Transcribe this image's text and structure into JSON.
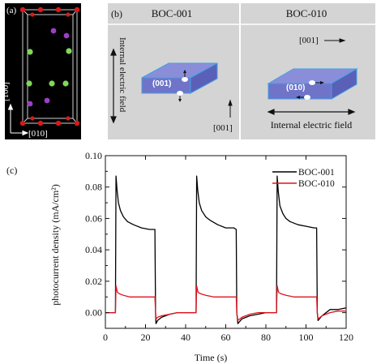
{
  "panel_a": {
    "label": "(a)",
    "axis_vertical": "[100]",
    "axis_horizontal": "[010]"
  },
  "panel_b": {
    "label": "(b)",
    "left_title": "BOC-001",
    "right_title": "BOC-010",
    "left_facet": "(001)",
    "right_facet": "(010)",
    "left_field_label": "Internal electric field",
    "right_field_label": "Internal electric field",
    "left_direction": "[001]",
    "right_direction": "[001]"
  },
  "colors": {
    "crystal_bg": "#000000",
    "panel_b_bg": "#d4d4d4",
    "slab_top": "#8a8ed9",
    "slab_side": "#5a60b8",
    "slab_edge": "#3fa0e6",
    "atom_red": "#d81a1a",
    "atom_green": "#7ed957",
    "atom_purple": "#9b3fc4",
    "series_boc001": "#000000",
    "series_boc010": "#e0141e"
  },
  "chart_data": {
    "label": "(c)",
    "type": "line",
    "xlabel": "Time (s)",
    "ylabel": "photocurrent density (mA/cm²)",
    "xlim": [
      0,
      120
    ],
    "ylim": [
      -0.01,
      0.1
    ],
    "xticks": [
      0,
      20,
      40,
      60,
      80,
      100,
      120
    ],
    "yticks": [
      0.0,
      0.02,
      0.04,
      0.06,
      0.08,
      0.1
    ],
    "ytick_labels": [
      "0.00",
      "0.02",
      "0.04",
      "0.06",
      "0.08",
      "0.10"
    ],
    "legend_position": "top-right",
    "series": [
      {
        "name": "BOC-001",
        "color": "#000000",
        "x": [
          0,
          5,
          5.3,
          5.8,
          6.5,
          7.5,
          9,
          11,
          14,
          18,
          22,
          24.7,
          25,
          25.2,
          26,
          28,
          32,
          36,
          40,
          44,
          45.2,
          45.5,
          46,
          46.8,
          48,
          50,
          52,
          56,
          60,
          64,
          65.2,
          65.5,
          66,
          68,
          72,
          76,
          80,
          84,
          85.3,
          85.6,
          86.2,
          87,
          88.5,
          90,
          92,
          96,
          100,
          104,
          105.3,
          105.6,
          106,
          108,
          112,
          116,
          120
        ],
        "y": [
          0.0,
          0.0,
          0.087,
          0.078,
          0.07,
          0.065,
          0.061,
          0.058,
          0.056,
          0.054,
          0.053,
          0.053,
          0.0,
          -0.007,
          -0.005,
          -0.003,
          -0.001,
          0.0,
          0.0,
          0.0,
          0.0,
          0.087,
          0.078,
          0.07,
          0.065,
          0.061,
          0.059,
          0.056,
          0.054,
          0.054,
          0.053,
          0.0,
          -0.007,
          -0.004,
          -0.002,
          -0.001,
          0.0,
          0.0,
          0.0,
          0.087,
          0.077,
          0.068,
          0.063,
          0.06,
          0.058,
          0.056,
          0.055,
          0.054,
          0.054,
          0.0,
          -0.005,
          -0.002,
          0.002,
          0.002,
          0.003
        ]
      },
      {
        "name": "BOC-010",
        "color": "#e0141e",
        "x": [
          0,
          5,
          5.3,
          6,
          7,
          9,
          12,
          16,
          20,
          24.7,
          25,
          25.3,
          26,
          28,
          32,
          36,
          40,
          44,
          45.2,
          45.5,
          46.2,
          47.5,
          50,
          54,
          58,
          62,
          65.2,
          65.5,
          66,
          68,
          72,
          76,
          80,
          84,
          85.3,
          85.6,
          86.3,
          87.5,
          90,
          94,
          98,
          102,
          105.3,
          105.6,
          106,
          108,
          112,
          116,
          120
        ],
        "y": [
          0.0,
          0.0,
          0.017,
          0.013,
          0.012,
          0.011,
          0.01,
          0.01,
          0.01,
          0.01,
          0.0,
          -0.004,
          -0.003,
          -0.002,
          -0.001,
          0.0,
          0.0,
          0.0,
          0.0,
          0.017,
          0.013,
          0.012,
          0.011,
          0.01,
          0.01,
          0.01,
          0.01,
          0.0,
          -0.005,
          -0.003,
          -0.001,
          0.0,
          0.0,
          0.0,
          0.0,
          0.017,
          0.013,
          0.012,
          0.011,
          0.01,
          0.01,
          0.01,
          0.01,
          0.0,
          -0.004,
          -0.002,
          0.0,
          0.001,
          0.001
        ]
      }
    ]
  }
}
